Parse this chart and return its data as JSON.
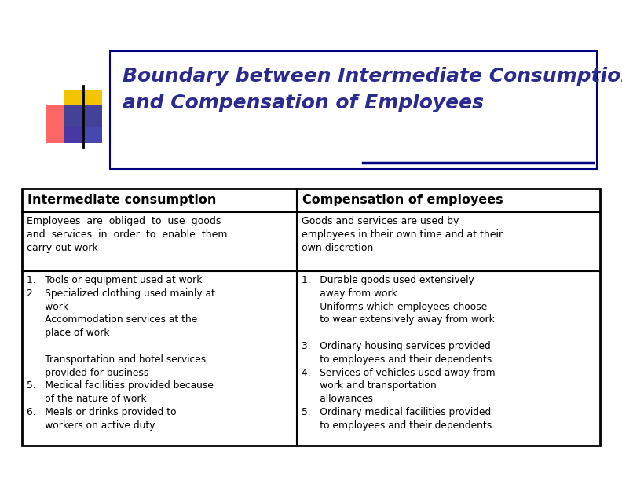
{
  "title_line1": "Boundary between Intermediate Consumption",
  "title_line2": "and Compensation of Employees",
  "title_color": "#2B2B8F",
  "title_fontsize": 18,
  "header_left": "Intermediate consumption",
  "header_right": "Compensation of employees",
  "header_fontsize": 11.5,
  "body_fontsize": 9.0,
  "intro_left": "Employees  are  obliged  to  use  goods\nand  services  in  order  to  enable  them\ncarry out work",
  "intro_right": "Goods and services are used by\nemployees in their own time and at their\nown discretion",
  "bg_color": "#FFFFFF",
  "slide_bg": "#FFFFFF",
  "square_yellow": "#F5C400",
  "square_red": "#FF5555",
  "square_blue": "#3333AA",
  "title_box_color": "#000080",
  "table_border_color": "#000000",
  "underline_color": "#000080"
}
